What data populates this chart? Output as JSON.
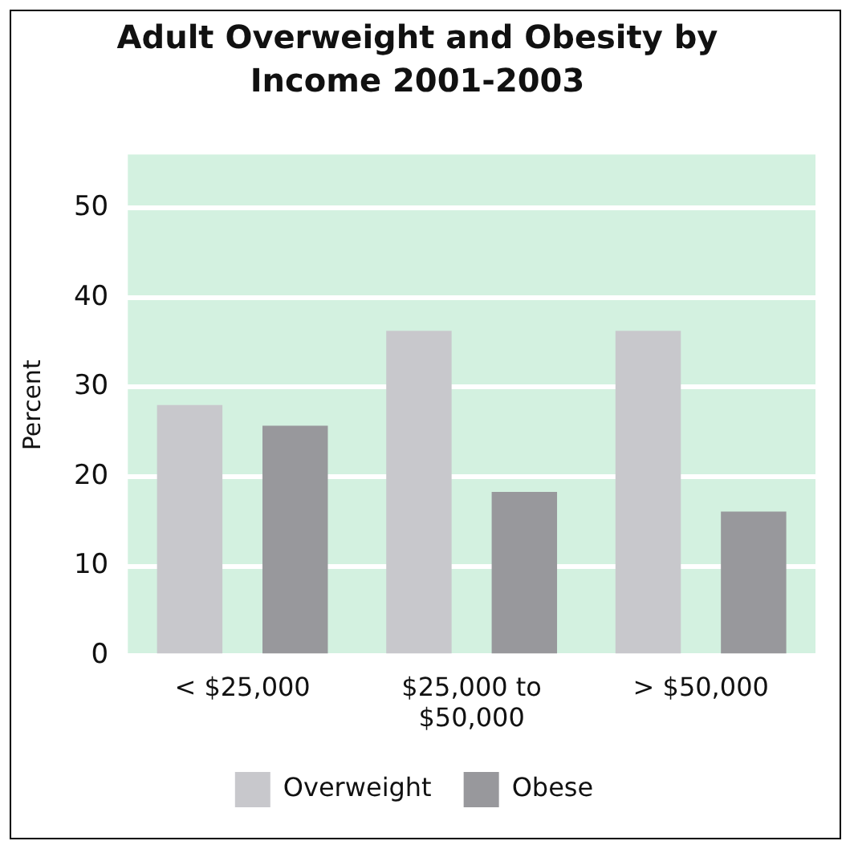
{
  "chart_data": {
    "type": "bar",
    "title": "Adult Overweight and Obesity by Income  2001-2003",
    "ylabel": "Percent",
    "categories": [
      "< $25,000",
      "$25,000 to $50,000",
      "> $50,000"
    ],
    "series": [
      {
        "name": "Overweight",
        "color": "#c8c8cc",
        "values": [
          28,
          36.3,
          36.3
        ]
      },
      {
        "name": "Obese",
        "color": "#98989c",
        "values": [
          25.7,
          18.3,
          16.1
        ]
      }
    ],
    "ylim": [
      0,
      56
    ],
    "yticks": [
      0,
      10,
      20,
      30,
      40,
      50
    ],
    "grid": "y",
    "legend": "bottom"
  }
}
